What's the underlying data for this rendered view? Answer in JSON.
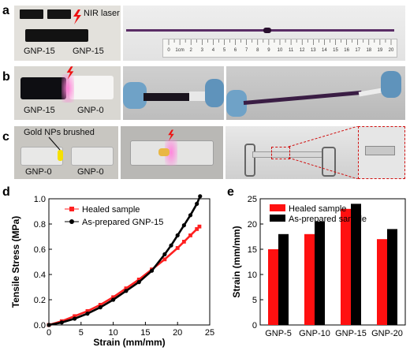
{
  "panels": {
    "a": {
      "letter": "a",
      "laser_label": "NIR laser",
      "left_label": "GNP-15",
      "right_label": "GNP-15",
      "ruler_ticks": [
        "0",
        "1cm",
        "2",
        "3",
        "4",
        "5",
        "6",
        "7",
        "8",
        "9",
        "10",
        "11",
        "12",
        "13",
        "14",
        "15",
        "16",
        "17",
        "18",
        "19",
        "20"
      ]
    },
    "b": {
      "letter": "b",
      "left_label": "GNP-15",
      "right_label": "GNP-0"
    },
    "c": {
      "letter": "c",
      "brush_label": "Gold NPs brushed",
      "left_label": "GNP-0",
      "right_label": "GNP-0"
    },
    "d": {
      "letter": "d"
    },
    "e": {
      "letter": "e"
    }
  },
  "chart_data": [
    {
      "id": "d",
      "type": "scatter",
      "xlabel": "Strain (mm/mm)",
      "ylabel": "Tensile Stress (MPa)",
      "xlim": [
        0,
        25
      ],
      "ylim": [
        0,
        1.0
      ],
      "xticks": [
        "0",
        "5",
        "10",
        "15",
        "20",
        "25"
      ],
      "yticks": [
        "0.0",
        "0.2",
        "0.4",
        "0.6",
        "0.8",
        "1.0"
      ],
      "legend_position": "top-left",
      "series": [
        {
          "name": "Healed sample",
          "color": "#ff2020",
          "marker": "square",
          "x": [
            0,
            2,
            4,
            6,
            8,
            10,
            12,
            14,
            16,
            18,
            20,
            21,
            22,
            23,
            23.4
          ],
          "y": [
            0,
            0.03,
            0.07,
            0.11,
            0.16,
            0.22,
            0.29,
            0.36,
            0.44,
            0.52,
            0.61,
            0.66,
            0.71,
            0.76,
            0.78
          ]
        },
        {
          "name": "As-prepared GNP-15",
          "color": "#000000",
          "marker": "circle",
          "x": [
            0,
            2,
            4,
            6,
            8,
            10,
            12,
            14,
            16,
            18,
            19,
            20,
            21,
            22,
            23,
            23.5
          ],
          "y": [
            0,
            0.02,
            0.05,
            0.09,
            0.14,
            0.2,
            0.27,
            0.34,
            0.43,
            0.56,
            0.63,
            0.71,
            0.79,
            0.87,
            0.96,
            1.02
          ]
        }
      ]
    },
    {
      "id": "e",
      "type": "bar",
      "xlabel": "",
      "ylabel": "Strain (mm/mm)",
      "ylim": [
        0,
        25
      ],
      "yticks": [
        "0",
        "5",
        "10",
        "15",
        "20",
        "25"
      ],
      "categories": [
        "GNP-5",
        "GNP-10",
        "GNP-15",
        "GNP-20"
      ],
      "legend_position": "top-left",
      "series": [
        {
          "name": "Healed sample",
          "color": "#ff1010",
          "values": [
            15,
            18,
            23,
            17
          ]
        },
        {
          "name": "As-prepared sample",
          "color": "#000000",
          "values": [
            18,
            20.5,
            24,
            19
          ]
        }
      ]
    }
  ]
}
